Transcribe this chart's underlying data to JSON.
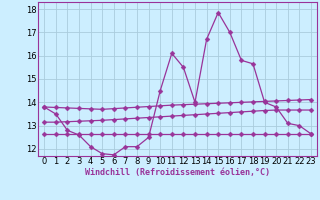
{
  "title": "",
  "xlabel": "Windchill (Refroidissement éolien,°C)",
  "ylabel": "",
  "background_color": "#cceeff",
  "grid_color": "#aaccdd",
  "line_color": "#993399",
  "xlim": [
    -0.5,
    23.5
  ],
  "ylim": [
    11.7,
    18.3
  ],
  "yticks": [
    12,
    13,
    14,
    15,
    16,
    17,
    18
  ],
  "xticks": [
    0,
    1,
    2,
    3,
    4,
    5,
    6,
    7,
    8,
    9,
    10,
    11,
    12,
    13,
    14,
    15,
    16,
    17,
    18,
    19,
    20,
    21,
    22,
    23
  ],
  "x": [
    0,
    1,
    2,
    3,
    4,
    5,
    6,
    7,
    8,
    9,
    10,
    11,
    12,
    13,
    14,
    15,
    16,
    17,
    18,
    19,
    20,
    21,
    22,
    23
  ],
  "y_main": [
    13.8,
    13.5,
    12.8,
    12.6,
    12.1,
    11.8,
    11.75,
    12.1,
    12.1,
    12.5,
    14.5,
    16.1,
    15.5,
    14.0,
    16.7,
    17.85,
    17.0,
    15.8,
    15.65,
    14.0,
    13.8,
    13.1,
    13.0,
    12.65
  ],
  "y_upper": [
    13.8,
    13.78,
    13.76,
    13.74,
    13.72,
    13.7,
    13.73,
    13.76,
    13.79,
    13.82,
    13.85,
    13.88,
    13.9,
    13.92,
    13.94,
    13.96,
    13.98,
    14.0,
    14.02,
    14.04,
    14.06,
    14.08,
    14.1,
    14.12
  ],
  "y_middle": [
    13.15,
    13.15,
    13.17,
    13.19,
    13.21,
    13.23,
    13.26,
    13.29,
    13.32,
    13.35,
    13.38,
    13.41,
    13.44,
    13.47,
    13.5,
    13.53,
    13.56,
    13.59,
    13.62,
    13.65,
    13.67,
    13.67,
    13.67,
    13.67
  ],
  "y_lower": [
    12.65,
    12.65,
    12.65,
    12.65,
    12.65,
    12.65,
    12.65,
    12.65,
    12.65,
    12.65,
    12.65,
    12.65,
    12.65,
    12.65,
    12.65,
    12.65,
    12.65,
    12.65,
    12.65,
    12.65,
    12.65,
    12.65,
    12.65,
    12.65
  ],
  "tick_fontsize": 6,
  "xlabel_fontsize": 6,
  "marker_size": 2.5,
  "linewidth": 0.9
}
